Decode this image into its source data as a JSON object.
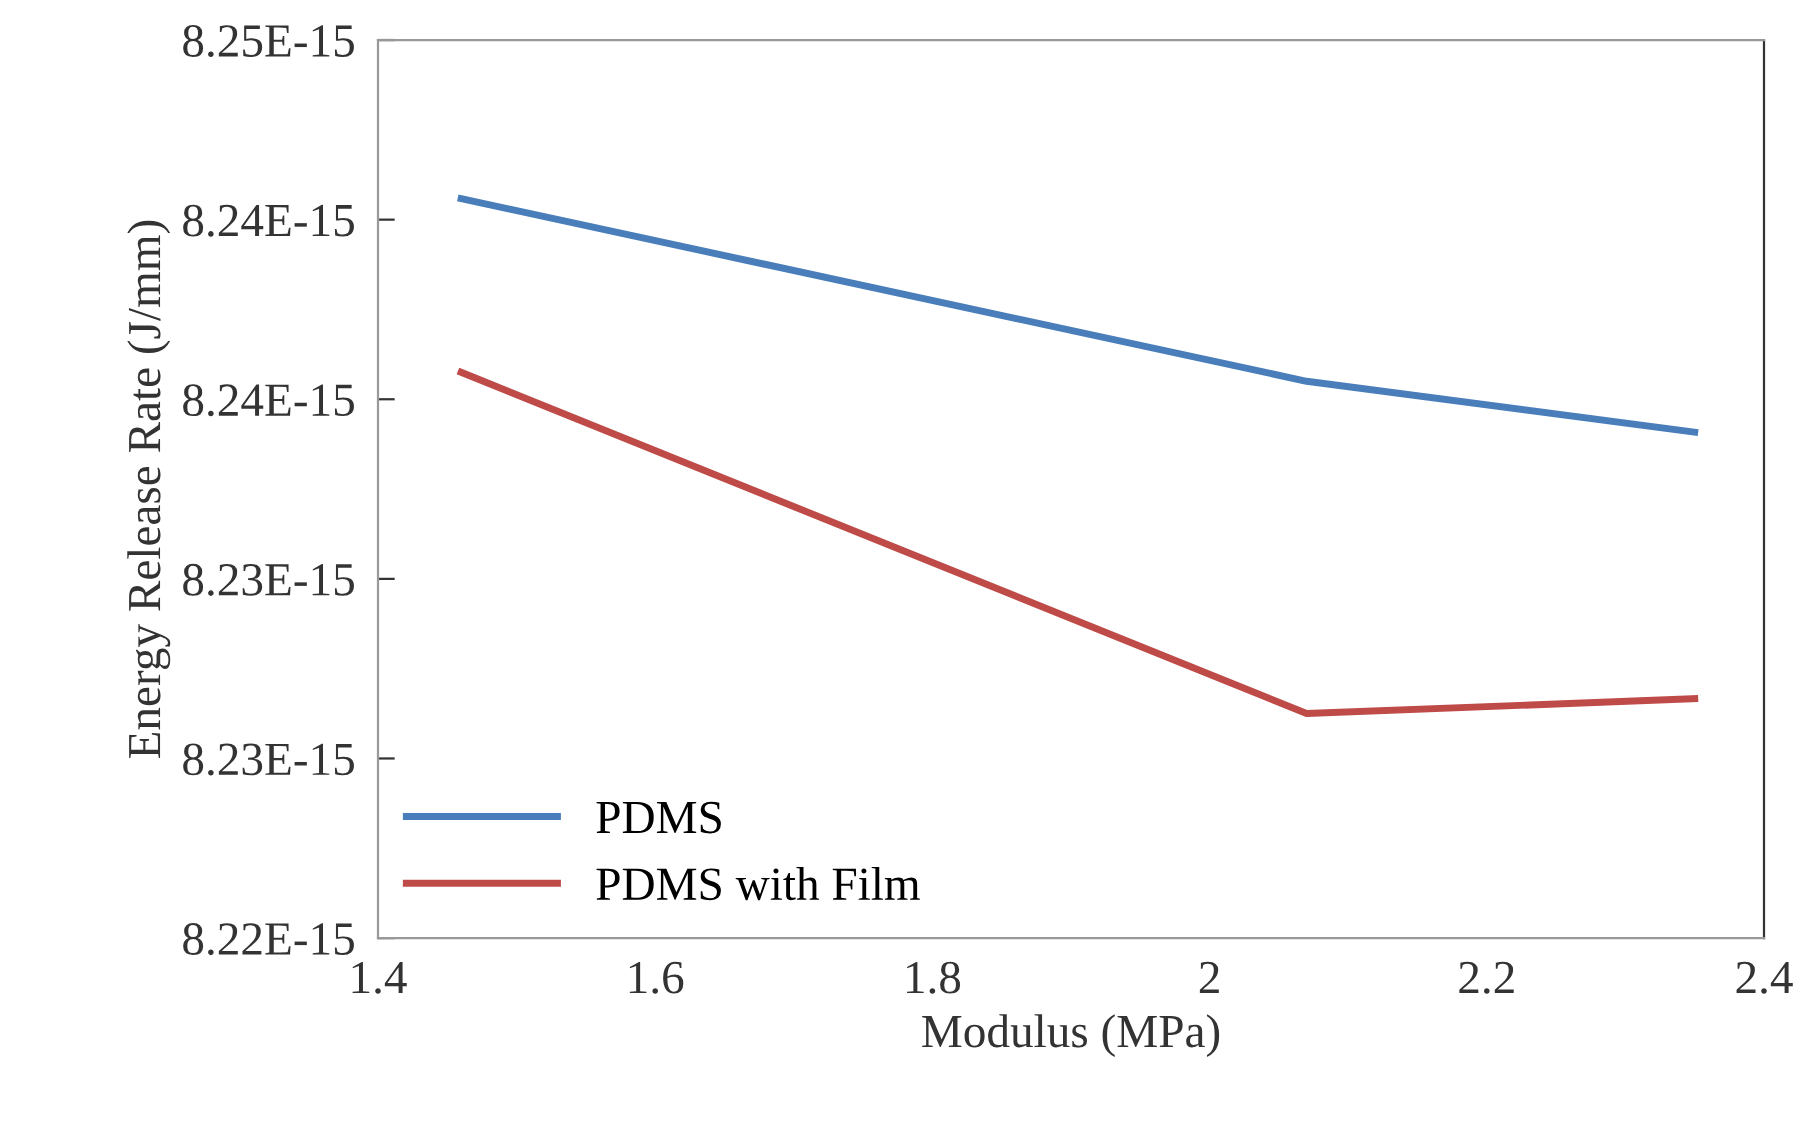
{
  "chart_data": {
    "type": "line",
    "xlabel": "Modulus (MPa)",
    "ylabel": "Energy Release Rate (J/mm)",
    "x": [
      1.46,
      2.07,
      2.35
    ],
    "series": [
      {
        "name": "PDMS",
        "color": "#4a7ebb",
        "values": [
          8.2447e-15,
          8.2386e-15,
          8.2369e-15
        ]
      },
      {
        "name": "PDMS with Film",
        "color": "#be4b48",
        "values": [
          8.2389e-15,
          8.2275e-15,
          8.228e-15
        ]
      }
    ],
    "xlim": [
      1.4,
      2.4
    ],
    "xticks": [
      1.4,
      1.6,
      1.8,
      2,
      2.2,
      2.4
    ],
    "ylim": [
      8.22e-15,
      8.25e-15
    ],
    "yticks": [
      {
        "value": 8.22e-15,
        "label": "8.22E-15"
      },
      {
        "value": 8.226e-15,
        "label": "8.23E-15"
      },
      {
        "value": 8.232e-15,
        "label": "8.23E-15"
      },
      {
        "value": 8.238e-15,
        "label": "8.24E-15"
      },
      {
        "value": 8.244e-15,
        "label": "8.24E-15"
      },
      {
        "value": 8.25e-15,
        "label": "8.25E-15"
      }
    ],
    "grid": false,
    "legend": "bottom left",
    "marker": "none",
    "line_style": "solid"
  }
}
